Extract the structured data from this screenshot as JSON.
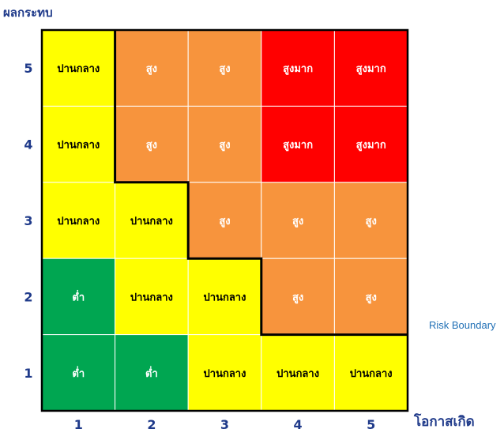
{
  "chart_data": {
    "type": "heatmap",
    "y_axis_title": "ผลกระทบ",
    "x_axis_title": "โอกาสเกิด",
    "annotation": "Risk Boundary",
    "x_ticks": [
      "1",
      "2",
      "3",
      "4",
      "5"
    ],
    "y_ticks": [
      "1",
      "2",
      "3",
      "4",
      "5"
    ],
    "levels": {
      "low": {
        "label": "ต่ำ",
        "color": "#00a651",
        "text_color": "#ffffff"
      },
      "medium": {
        "label": "ปานกลาง",
        "color": "#ffff00",
        "text_color": "#000000"
      },
      "high": {
        "label": "สูง",
        "color": "#f7943d",
        "text_color": "#ffffff"
      },
      "very_high": {
        "label": "สูงมาก",
        "color": "#ff0000",
        "text_color": "#ffffff"
      }
    },
    "grid": [
      {
        "impact": 5,
        "cells": [
          "medium",
          "high",
          "high",
          "very_high",
          "very_high"
        ]
      },
      {
        "impact": 4,
        "cells": [
          "medium",
          "high",
          "high",
          "very_high",
          "very_high"
        ]
      },
      {
        "impact": 3,
        "cells": [
          "medium",
          "medium",
          "high",
          "high",
          "high"
        ]
      },
      {
        "impact": 2,
        "cells": [
          "low",
          "medium",
          "medium",
          "high",
          "high"
        ]
      },
      {
        "impact": 1,
        "cells": [
          "low",
          "low",
          "medium",
          "medium",
          "medium"
        ]
      }
    ]
  }
}
